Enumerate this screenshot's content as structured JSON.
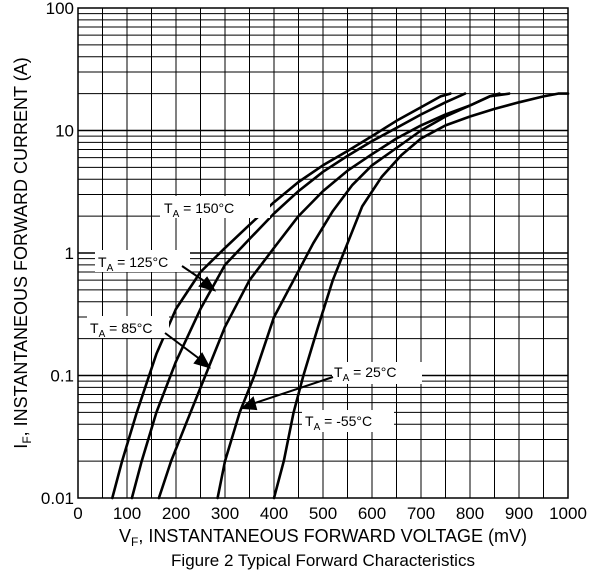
{
  "chart_data": {
    "type": "line",
    "x_scale": "linear",
    "y_scale": "log",
    "xlim": [
      0,
      1000
    ],
    "ylim": [
      0.01,
      100
    ],
    "grid": true,
    "x_ticks": [
      "0",
      "100",
      "200",
      "300",
      "400",
      "500",
      "600",
      "700",
      "800",
      "900",
      "1000"
    ],
    "y_ticks": [
      "0.01",
      "0.1",
      "1",
      "10",
      "100"
    ],
    "xlabel": {
      "pre": "V",
      "sub": "F",
      "post": ", INSTANTANEOUS FORWARD VOLTAGE (mV)"
    },
    "ylabel": {
      "pre": "I",
      "sub": "F",
      "post": ", INSTANTANEOUS FORWARD CURRENT (A)"
    },
    "caption": "Figure 2 Typical Forward Characteristics",
    "series": [
      {
        "name": "T_A = 150°C",
        "label_pre": "T",
        "label_sub": "A",
        "label_post": " = 150°C",
        "points": [
          [
            70,
            0.01
          ],
          [
            90,
            0.02
          ],
          [
            120,
            0.05
          ],
          [
            160,
            0.15
          ],
          [
            200,
            0.35
          ],
          [
            250,
            0.7
          ],
          [
            300,
            1.1
          ],
          [
            350,
            1.7
          ],
          [
            400,
            2.6
          ],
          [
            450,
            3.8
          ],
          [
            500,
            5.2
          ],
          [
            550,
            6.8
          ],
          [
            600,
            9
          ],
          [
            650,
            12
          ],
          [
            700,
            15.5
          ],
          [
            740,
            19
          ],
          [
            760,
            20
          ]
        ]
      },
      {
        "name": "T_A = 125°C",
        "label_pre": "T",
        "label_sub": "A",
        "label_post": " = 125°C",
        "points": [
          [
            110,
            0.01
          ],
          [
            130,
            0.02
          ],
          [
            160,
            0.05
          ],
          [
            200,
            0.13
          ],
          [
            250,
            0.35
          ],
          [
            300,
            0.8
          ],
          [
            350,
            1.3
          ],
          [
            400,
            2.1
          ],
          [
            450,
            3.2
          ],
          [
            500,
            4.6
          ],
          [
            550,
            6.2
          ],
          [
            600,
            8.2
          ],
          [
            650,
            10.5
          ],
          [
            700,
            13.5
          ],
          [
            750,
            17
          ],
          [
            790,
            20
          ]
        ]
      },
      {
        "name": "T_A = 85°C",
        "label_pre": "T",
        "label_sub": "A",
        "label_post": " = 85°C",
        "points": [
          [
            165,
            0.01
          ],
          [
            190,
            0.02
          ],
          [
            220,
            0.04
          ],
          [
            260,
            0.1
          ],
          [
            300,
            0.25
          ],
          [
            350,
            0.6
          ],
          [
            400,
            1.1
          ],
          [
            450,
            2
          ],
          [
            500,
            3.2
          ],
          [
            550,
            4.7
          ],
          [
            600,
            6.4
          ],
          [
            650,
            8.6
          ],
          [
            700,
            11
          ],
          [
            750,
            13.5
          ],
          [
            800,
            16
          ],
          [
            840,
            19
          ],
          [
            880,
            20
          ]
        ]
      },
      {
        "name": "T_A = 25°C",
        "label_pre": "T",
        "label_sub": "A",
        "label_post": " = 25°C",
        "points": [
          [
            285,
            0.01
          ],
          [
            300,
            0.02
          ],
          [
            330,
            0.05
          ],
          [
            360,
            0.1
          ],
          [
            400,
            0.3
          ],
          [
            440,
            0.6
          ],
          [
            480,
            1.2
          ],
          [
            520,
            2.2
          ],
          [
            560,
            3.6
          ],
          [
            600,
            5.2
          ],
          [
            650,
            7.2
          ],
          [
            700,
            10
          ],
          [
            750,
            13
          ],
          [
            800,
            16
          ],
          [
            840,
            19
          ],
          [
            860,
            20
          ]
        ]
      },
      {
        "name": "T_A = -55°C",
        "label_pre": "T",
        "label_sub": "A",
        "label_post": " = -55°C",
        "points": [
          [
            400,
            0.01
          ],
          [
            420,
            0.02
          ],
          [
            440,
            0.05
          ],
          [
            460,
            0.1
          ],
          [
            490,
            0.25
          ],
          [
            520,
            0.6
          ],
          [
            550,
            1.2
          ],
          [
            580,
            2.4
          ],
          [
            620,
            4.2
          ],
          [
            660,
            6.3
          ],
          [
            700,
            8.6
          ],
          [
            750,
            11
          ],
          [
            800,
            13
          ],
          [
            850,
            15
          ],
          [
            900,
            17
          ],
          [
            950,
            19
          ],
          [
            980,
            20
          ],
          [
            1000,
            20
          ]
        ]
      }
    ]
  }
}
